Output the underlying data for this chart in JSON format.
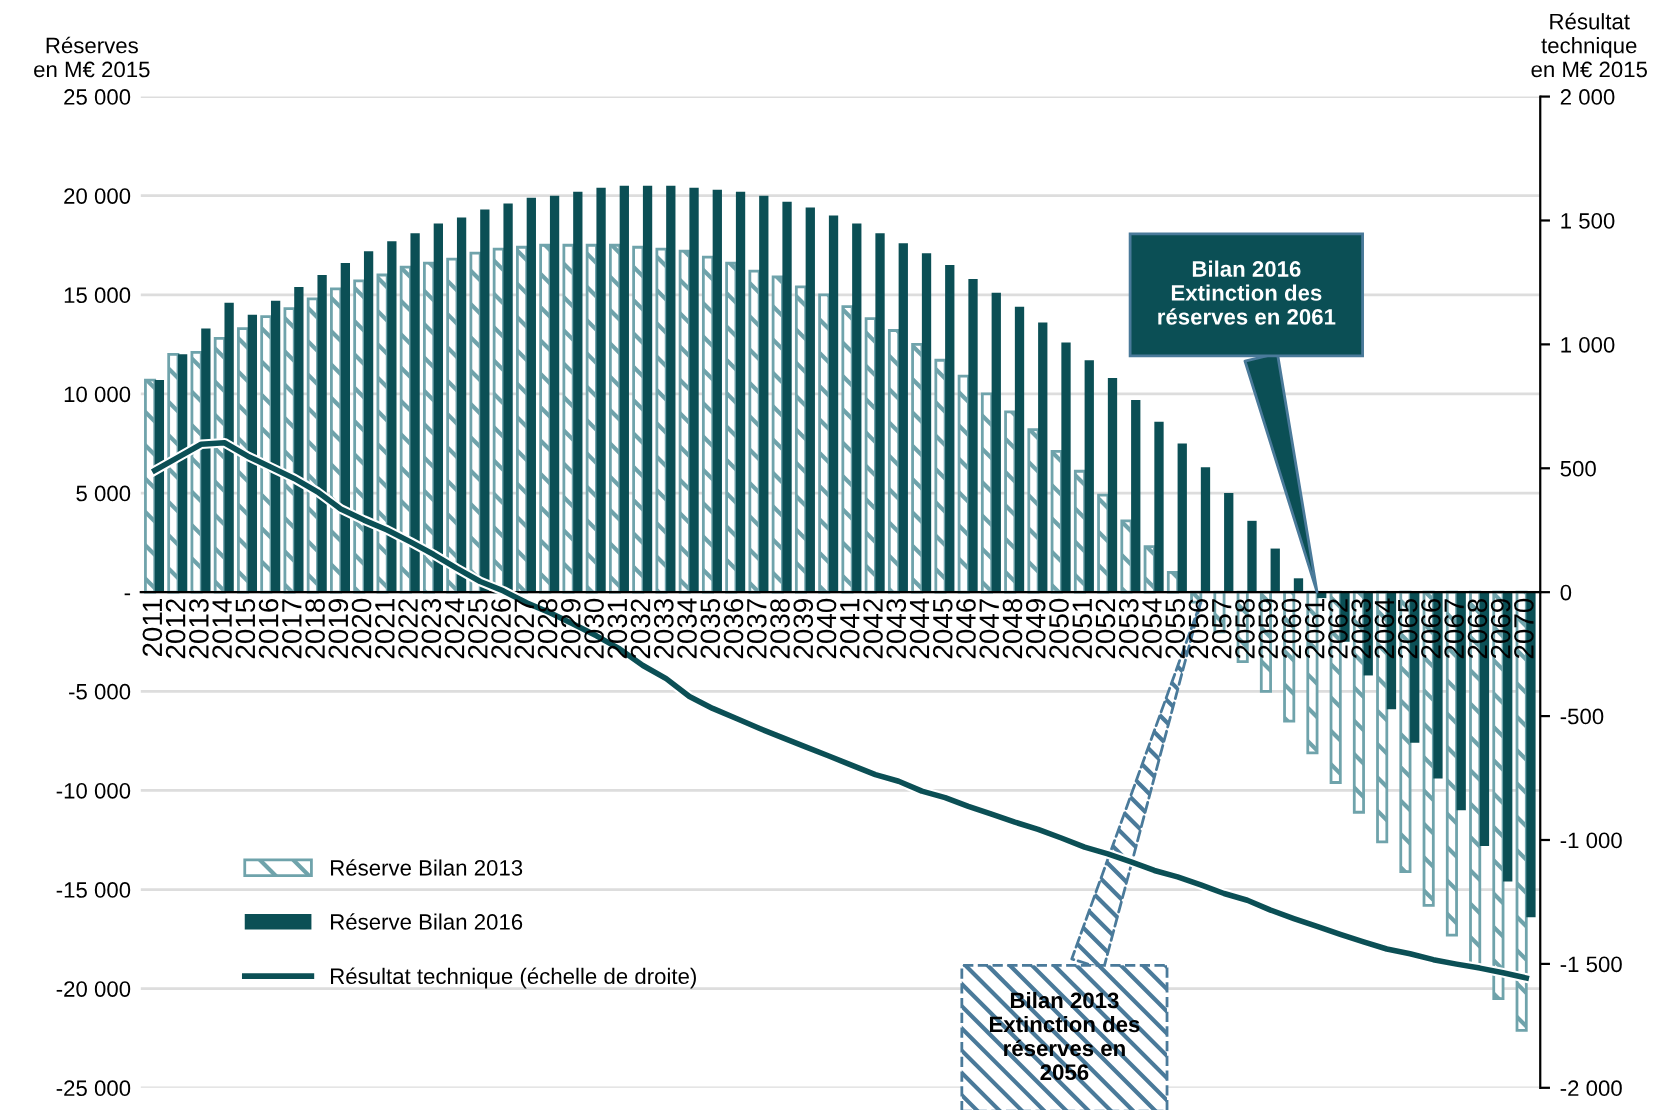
{
  "chart_data": {
    "type": "bar",
    "ylabel": "Réserves\nen M€ 2015",
    "y2label": "Résultat\ntechnique\nen M€ 2015",
    "categories": [
      "2011",
      "2012",
      "2013",
      "2014",
      "2015",
      "2016",
      "2017",
      "2018",
      "2019",
      "2020",
      "2021",
      "2022",
      "2023",
      "2024",
      "2025",
      "2026",
      "2027",
      "2028",
      "2029",
      "2030",
      "2031",
      "2032",
      "2033",
      "2034",
      "2035",
      "2036",
      "2037",
      "2038",
      "2039",
      "2040",
      "2041",
      "2042",
      "2043",
      "2044",
      "2045",
      "2046",
      "2047",
      "2048",
      "2049",
      "2050",
      "2051",
      "2052",
      "2053",
      "2054",
      "2055",
      "2056",
      "2057",
      "2058",
      "2059",
      "2060",
      "2061",
      "2062",
      "2063",
      "2064",
      "2065",
      "2066",
      "2067",
      "2068",
      "2069",
      "2070"
    ],
    "series": [
      {
        "name": "Réserve Bilan 2013",
        "color": "#6fa3ab",
        "values": [
          10700,
          12000,
          12100,
          12800,
          13300,
          13900,
          14300,
          14800,
          15300,
          15700,
          16000,
          16400,
          16600,
          16800,
          17100,
          17300,
          17400,
          17500,
          17500,
          17500,
          17500,
          17400,
          17300,
          17200,
          16900,
          16600,
          16200,
          15900,
          15400,
          15000,
          14400,
          13800,
          13200,
          12500,
          11700,
          10900,
          10000,
          9100,
          8200,
          7100,
          6100,
          4900,
          3600,
          2300,
          1000,
          -500,
          -2000,
          -3500,
          -5000,
          -6500,
          -8100,
          -9600,
          -11100,
          -12600,
          -14100,
          -15800,
          -17300,
          -18900,
          -20500,
          -22100
        ]
      },
      {
        "name": "Réserve Bilan 2016",
        "color": "#0b4f55",
        "values": [
          10700,
          12000,
          13300,
          14600,
          14000,
          14700,
          15400,
          16000,
          16600,
          17200,
          17700,
          18100,
          18600,
          18900,
          19300,
          19600,
          19900,
          20000,
          20200,
          20400,
          20500,
          20500,
          20500,
          20400,
          20300,
          20200,
          20000,
          19700,
          19400,
          19000,
          18600,
          18100,
          17600,
          17100,
          16500,
          15800,
          15100,
          14400,
          13600,
          12600,
          11700,
          10800,
          9700,
          8600,
          7500,
          6300,
          5000,
          3600,
          2200,
          700,
          -300,
          -2500,
          -4200,
          -5900,
          -7600,
          -9400,
          -11000,
          -12800,
          -14600,
          -16400
        ]
      },
      {
        "name": "Résultat technique (échelle de droite)",
        "type": "line",
        "axis": "y2",
        "color": "#0b4f55",
        "values": [
          491,
          544,
          597,
          603,
          549,
          504,
          459,
          405,
          336,
          291,
          251,
          203,
          152,
          96,
          43,
          5,
          -43,
          -83,
          -128,
          -176,
          -229,
          -296,
          -349,
          -421,
          -469,
          -509,
          -549,
          -587,
          -624,
          -661,
          -699,
          -736,
          -763,
          -803,
          -829,
          -864,
          -896,
          -928,
          -957,
          -992,
          -1029,
          -1056,
          -1088,
          -1123,
          -1149,
          -1181,
          -1216,
          -1243,
          -1283,
          -1317,
          -1349,
          -1381,
          -1411,
          -1440,
          -1459,
          -1483,
          -1501,
          -1517,
          -1536,
          -1557
        ]
      }
    ],
    "ylim": [
      -25000,
      25000
    ],
    "yticks": [
      {
        "value": -25000,
        "label": "-25 000"
      },
      {
        "value": -20000,
        "label": "-20 000"
      },
      {
        "value": -15000,
        "label": "-15 000"
      },
      {
        "value": -10000,
        "label": "-10 000"
      },
      {
        "value": -5000,
        "label": "-5 000"
      },
      {
        "value": 0,
        "label": "-"
      },
      {
        "value": 5000,
        "label": "5 000"
      },
      {
        "value": 10000,
        "label": "10 000"
      },
      {
        "value": 15000,
        "label": "15 000"
      },
      {
        "value": 20000,
        "label": "20 000"
      },
      {
        "value": 25000,
        "label": "25 000"
      }
    ],
    "y2lim": [
      -2000,
      2000
    ],
    "y2ticks": [
      {
        "value": -2000,
        "label": "-2 000"
      },
      {
        "value": -1500,
        "label": "-1 500"
      },
      {
        "value": -1000,
        "label": "-1 000"
      },
      -500,
      0,
      500,
      {
        "value": 1000,
        "label": "1 000"
      },
      {
        "value": 1500,
        "label": "1 500"
      },
      {
        "value": 2000,
        "label": "2 000"
      }
    ],
    "grid": "y",
    "legend": "bottom left",
    "annotations": [
      {
        "text": "Bilan 2016\nExtinction des\nréserves en 2061",
        "x": "2061",
        "y": 0
      },
      {
        "text": "Bilan 2013\nExtinction des\nréserves en\n2056",
        "x": "2056",
        "y": -500
      }
    ]
  }
}
